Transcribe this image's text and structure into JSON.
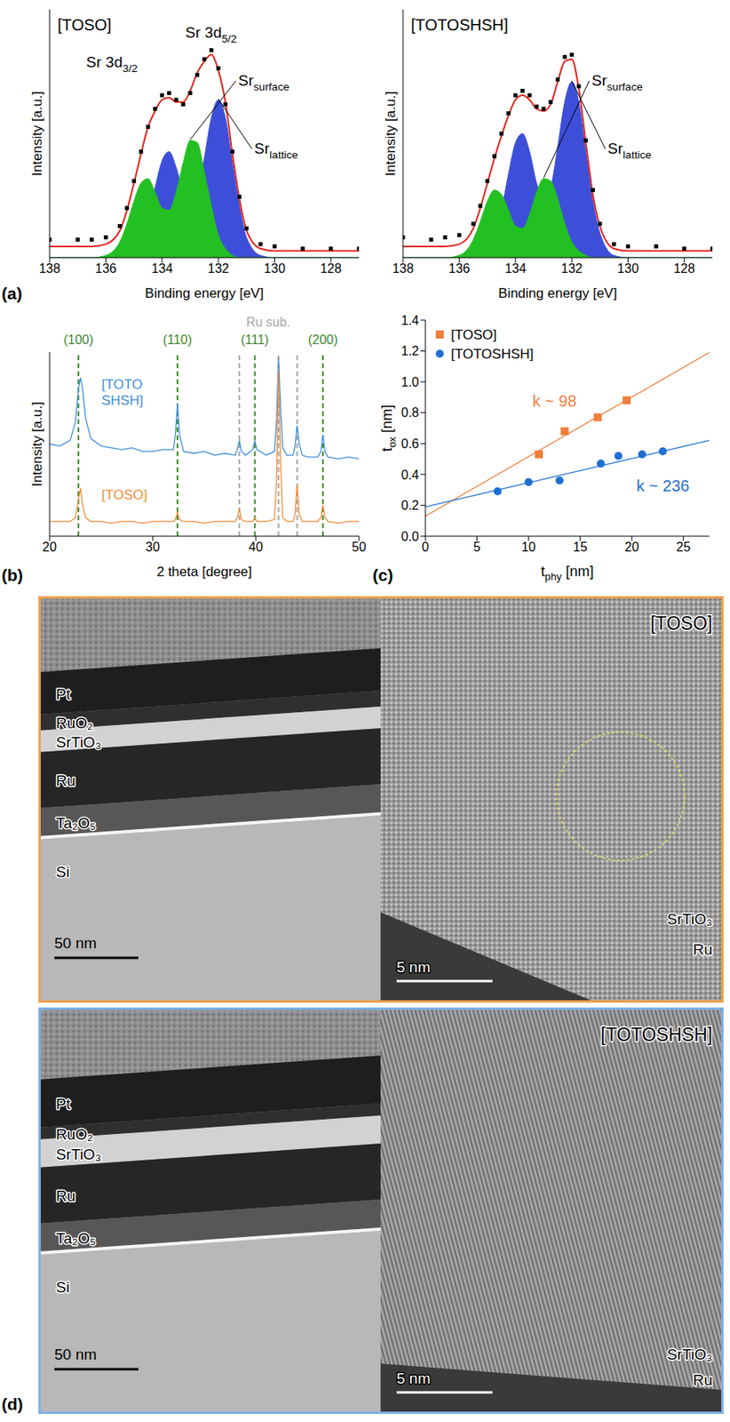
{
  "chart_data": [
    {
      "type": "area",
      "panel": "(a)",
      "title": "[TOSO]",
      "peak_labels": [
        {
          "text": "Sr 3d",
          "subscript": "5/2"
        },
        {
          "text": "Sr 3d",
          "subscript": "3/2"
        }
      ],
      "x_label": "Binding energy [eV]",
      "y_label": "Intensity [a.u.]",
      "x": [
        127,
        128,
        129,
        130,
        130.5,
        131,
        131.25,
        131.5,
        131.75,
        132,
        132.25,
        132.5,
        132.75,
        133,
        133.25,
        133.5,
        133.75,
        134,
        134.25,
        134.5,
        134.75,
        135,
        135.25,
        135.5,
        136,
        136.5,
        137,
        138
      ],
      "xlim": [
        138,
        127
      ],
      "xticks": [
        138,
        136,
        134,
        132,
        130,
        128
      ],
      "ylim": [
        0,
        1.1
      ],
      "tick_labels": "x",
      "series": [
        {
          "name": {
            "text": "Sr",
            "subscript": "lattice"
          },
          "type": "area",
          "color": "#3d4fd8",
          "values": [
            0,
            0,
            0,
            0,
            0.01,
            0.09,
            0.23,
            0.42,
            0.62,
            0.7,
            0.62,
            0.44,
            0.28,
            0.23,
            0.29,
            0.4,
            0.47,
            0.43,
            0.31,
            0.18,
            0.08,
            0.03,
            0.01,
            0,
            0,
            0,
            0,
            0
          ]
        },
        {
          "name": {
            "text": "Sr",
            "subscript": "surface"
          },
          "type": "area",
          "color": "#22c022",
          "values": [
            0,
            0,
            0,
            0,
            0,
            0,
            0,
            0.01,
            0.04,
            0.1,
            0.23,
            0.38,
            0.51,
            0.52,
            0.42,
            0.29,
            0.21,
            0.22,
            0.29,
            0.35,
            0.33,
            0.25,
            0.15,
            0.07,
            0.01,
            0,
            0,
            0
          ]
        },
        {
          "type": "scatter",
          "marker": "square",
          "color": "#000000",
          "values": [
            0.04,
            0.04,
            0.04,
            0.05,
            0.06,
            0.13,
            0.27,
            0.47,
            0.68,
            0.84,
            0.92,
            0.88,
            0.81,
            0.73,
            0.68,
            0.7,
            0.73,
            0.72,
            0.66,
            0.58,
            0.47,
            0.34,
            0.22,
            0.14,
            0.09,
            0.08,
            0.08,
            0.08
          ]
        },
        {
          "type": "line",
          "color": "#e3231c",
          "values": [
            0.03,
            0.03,
            0.03,
            0.03,
            0.04,
            0.12,
            0.26,
            0.46,
            0.69,
            0.83,
            0.9,
            0.87,
            0.82,
            0.74,
            0.69,
            0.69,
            0.71,
            0.7,
            0.65,
            0.58,
            0.46,
            0.33,
            0.21,
            0.12,
            0.06,
            0.05,
            0.05,
            0.05
          ]
        }
      ]
    },
    {
      "type": "area",
      "title": "[TOTOSHSH]",
      "x_label": "Binding energy [eV]",
      "y_label": "Intensity [a.u.]",
      "x": [
        127,
        128,
        129,
        130,
        130.5,
        131,
        131.25,
        131.5,
        131.75,
        132,
        132.25,
        132.5,
        132.75,
        133,
        133.25,
        133.5,
        133.75,
        134,
        134.25,
        134.5,
        134.75,
        135,
        135.25,
        135.5,
        136,
        136.5,
        137,
        138
      ],
      "xlim": [
        138,
        127
      ],
      "xticks": [
        138,
        136,
        134,
        132,
        130,
        128
      ],
      "ylim": [
        0,
        1.1
      ],
      "tick_labels": "x",
      "series": [
        {
          "name": {
            "text": "Sr",
            "subscript": "lattice"
          },
          "type": "area",
          "color": "#3d4fd8",
          "values": [
            0,
            0,
            0,
            0,
            0.01,
            0.11,
            0.25,
            0.47,
            0.69,
            0.78,
            0.69,
            0.49,
            0.31,
            0.26,
            0.33,
            0.47,
            0.55,
            0.51,
            0.37,
            0.21,
            0.09,
            0.03,
            0.01,
            0,
            0,
            0,
            0,
            0
          ]
        },
        {
          "name": {
            "text": "Sr",
            "subscript": "surface"
          },
          "type": "area",
          "color": "#22c022",
          "values": [
            0,
            0,
            0,
            0,
            0,
            0,
            0,
            0.01,
            0.03,
            0.07,
            0.15,
            0.26,
            0.34,
            0.35,
            0.29,
            0.19,
            0.13,
            0.14,
            0.21,
            0.28,
            0.3,
            0.25,
            0.16,
            0.08,
            0.01,
            0,
            0,
            0
          ]
        },
        {
          "type": "scatter",
          "marker": "square",
          "color": "#000000",
          "values": [
            0.04,
            0.04,
            0.05,
            0.05,
            0.06,
            0.15,
            0.3,
            0.52,
            0.76,
            0.9,
            0.89,
            0.79,
            0.69,
            0.66,
            0.67,
            0.72,
            0.74,
            0.72,
            0.64,
            0.55,
            0.45,
            0.34,
            0.23,
            0.15,
            0.1,
            0.09,
            0.08,
            0.09
          ]
        },
        {
          "type": "line",
          "color": "#e3231c",
          "values": [
            0.03,
            0.03,
            0.03,
            0.03,
            0.04,
            0.14,
            0.28,
            0.51,
            0.75,
            0.88,
            0.87,
            0.78,
            0.68,
            0.65,
            0.66,
            0.7,
            0.72,
            0.7,
            0.63,
            0.54,
            0.44,
            0.33,
            0.22,
            0.13,
            0.06,
            0.05,
            0.05,
            0.05
          ]
        }
      ]
    },
    {
      "type": "line",
      "panel": "(b)",
      "x_label": "2 theta [degree]",
      "y_label": "Intensity [a.u.]",
      "x": [
        20,
        21,
        22,
        22.5,
        22.8,
        23,
        23.2,
        23.5,
        24,
        25,
        26,
        27,
        28,
        29,
        30,
        31,
        32,
        32.2,
        32.4,
        32.6,
        33,
        34,
        35,
        36,
        37,
        38,
        38.2,
        38.4,
        38.6,
        39,
        39.7,
        39.9,
        40.1,
        41,
        41.8,
        42,
        42.2,
        42.4,
        42.6,
        43,
        43.6,
        43.8,
        44,
        44.2,
        44.5,
        45,
        46,
        46.3,
        46.5,
        46.7,
        47,
        48,
        49,
        50
      ],
      "xlim": [
        20,
        50
      ],
      "xticks": [
        20,
        30,
        40,
        50
      ],
      "ylim": [
        0,
        1
      ],
      "tick_labels": "x",
      "reference_lines": [
        {
          "label": "(100)",
          "x": [
            22.8
          ],
          "color": "#3d8a2c"
        },
        {
          "label": "(110)",
          "x": [
            32.4
          ],
          "color": "#3d8a2c"
        },
        {
          "label": "(111)",
          "x": [
            39.9
          ],
          "color": "#3d8a2c"
        },
        {
          "label": "(200)",
          "x": [
            46.5
          ],
          "color": "#3d8a2c"
        },
        {
          "label": "Ru sub.",
          "x": [
            38.4,
            42.2,
            44.0
          ],
          "color": "#a6a6a6"
        }
      ],
      "series": [
        {
          "name": "[TOTOSHSH]",
          "color": "#3f8fd8",
          "values": [
            0.5,
            0.49,
            0.52,
            0.62,
            0.8,
            0.86,
            0.8,
            0.64,
            0.53,
            0.49,
            0.48,
            0.47,
            0.48,
            0.46,
            0.46,
            0.47,
            0.47,
            0.55,
            0.72,
            0.55,
            0.46,
            0.45,
            0.46,
            0.44,
            0.45,
            0.44,
            0.47,
            0.52,
            0.46,
            0.44,
            0.47,
            0.52,
            0.47,
            0.44,
            0.46,
            0.62,
            0.97,
            0.7,
            0.48,
            0.44,
            0.44,
            0.49,
            0.6,
            0.5,
            0.44,
            0.43,
            0.43,
            0.46,
            0.55,
            0.46,
            0.43,
            0.42,
            0.43,
            0.42
          ]
        },
        {
          "name": "[TOSO]",
          "color": "#f28c38",
          "values": [
            0.08,
            0.08,
            0.08,
            0.1,
            0.2,
            0.26,
            0.17,
            0.1,
            0.08,
            0.08,
            0.07,
            0.08,
            0.08,
            0.07,
            0.08,
            0.08,
            0.08,
            0.09,
            0.13,
            0.09,
            0.08,
            0.08,
            0.07,
            0.08,
            0.08,
            0.08,
            0.1,
            0.15,
            0.09,
            0.08,
            0.08,
            0.1,
            0.08,
            0.08,
            0.09,
            0.3,
            0.9,
            0.4,
            0.1,
            0.08,
            0.08,
            0.12,
            0.28,
            0.12,
            0.08,
            0.08,
            0.08,
            0.1,
            0.17,
            0.1,
            0.08,
            0.07,
            0.08,
            0.08
          ]
        }
      ]
    },
    {
      "type": "scatter",
      "panel": "(c)",
      "x_label": {
        "text": "t",
        "subscript": "phy",
        "suffix": " [nm]"
      },
      "y_label": {
        "text": "t",
        "subscript": "ox",
        "suffix": " [nm]"
      },
      "xlim": [
        0,
        27.5
      ],
      "xticks": [
        0,
        5,
        10,
        15,
        20,
        25
      ],
      "ylim": [
        0,
        1.4
      ],
      "yticks": [
        {
          "value": 0,
          "label": "0.0"
        },
        0.2,
        0.4,
        0.6,
        0.8,
        {
          "value": 1,
          "label": "1.0"
        },
        1.2,
        1.4
      ],
      "legend": "upper left",
      "series": [
        {
          "name": "[TOSO]",
          "color": "#f07f3c",
          "marker": "square",
          "x": [
            11,
            13.5,
            16.7,
            19.5
          ],
          "values": [
            0.53,
            0.68,
            0.77,
            0.88
          ],
          "fit": {
            "x": [
              0,
              27.5
            ],
            "values": [
              0.13,
              1.19
            ]
          },
          "annotation": "k ~ 98"
        },
        {
          "name": "[TOTOSHSH]",
          "color": "#1f6fd1",
          "marker": "circle",
          "x": [
            7,
            10,
            13,
            17,
            18.7,
            21,
            23
          ],
          "values": [
            0.29,
            0.35,
            0.36,
            0.47,
            0.52,
            0.53,
            0.55
          ],
          "fit": {
            "x": [
              0,
              27.5
            ],
            "values": [
              0.19,
              0.62
            ]
          },
          "annotation": "k ~ 236"
        }
      ]
    }
  ],
  "tem": {
    "panel": "(d)",
    "images": [
      {
        "sample": "[TOSO]",
        "frame_color": "#f0a04b",
        "layers": [
          "Pt",
          "RuO₂",
          "SrTiO₃",
          "Ru",
          "Ta₂O₅",
          "Si"
        ],
        "scale_bar": "50 nm",
        "hrtem_labels": [
          "SrTiO₃",
          "Ru"
        ],
        "hrtem_scale_bar": "5 nm",
        "marked_region": true
      },
      {
        "sample": "[TOTOSHSH]",
        "frame_color": "#7fb0e6",
        "layers": [
          "Pt",
          "RuO₂",
          "SrTiO₃",
          "Ru",
          "Ta₂O₅",
          "Si"
        ],
        "scale_bar": "50 nm",
        "hrtem_labels": [
          "SrTiO₃",
          "Ru"
        ],
        "hrtem_scale_bar": "5 nm",
        "marked_region": false
      }
    ]
  }
}
